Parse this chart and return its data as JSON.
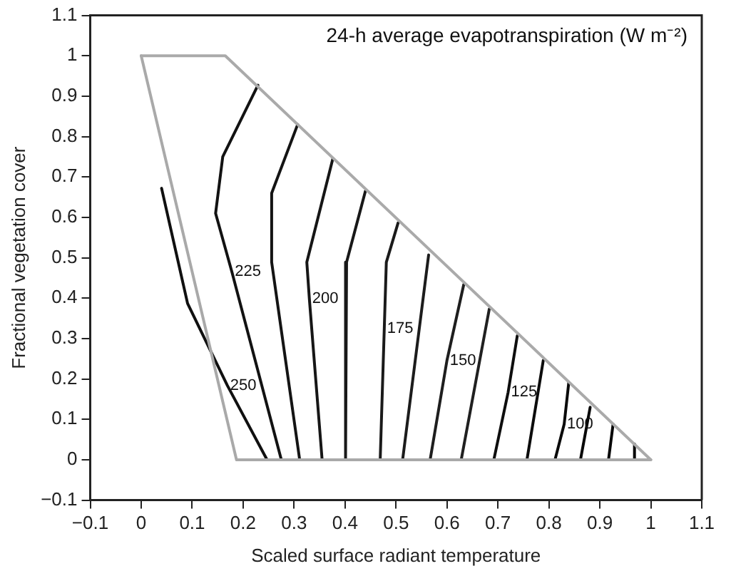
{
  "chart_data": {
    "type": "line",
    "title": "24-h average evapotranspiration (W m⁻²)",
    "xlabel": "Scaled surface radiant temperature",
    "ylabel": "Fractional vegetation cover",
    "xlim": [
      -0.1,
      1.1
    ],
    "ylim": [
      -0.1,
      1.1
    ],
    "xticks": [
      {
        "value": -0.1,
        "label": "−0.1"
      },
      0,
      0.1,
      0.2,
      0.3,
      0.4,
      0.5,
      0.6,
      0.7,
      0.8,
      0.9,
      1,
      1.1
    ],
    "yticks": [
      {
        "value": -0.1,
        "label": "−0.1"
      },
      0,
      0.1,
      0.2,
      0.3,
      0.4,
      0.5,
      0.6,
      0.7,
      0.8,
      0.9,
      1,
      1.1
    ],
    "grid": false,
    "legend": false,
    "marker": "none",
    "line_style": "solid",
    "series": [
      {
        "color": "#aaaaaa",
        "x": [
          0,
          0.165,
          1
        ],
        "values": [
          1,
          1,
          0
        ]
      },
      {
        "color": "#a9a9a9",
        "x": [
          0,
          0.187,
          1
        ],
        "values": [
          1,
          0,
          0
        ]
      },
      {
        "color": "#101010",
        "x": [
          0.04,
          0.091,
          0.169,
          0.247
        ],
        "values": [
          0.672,
          0.387,
          0.184,
          0
        ]
      },
      {
        "color": "#121212",
        "x": [
          0.229,
          0.16,
          0.146,
          0.178,
          0.275
        ],
        "values": [
          0.927,
          0.75,
          0.61,
          0.465,
          0
        ]
      },
      {
        "color": "#141414",
        "x": [
          0.307,
          0.256,
          0.256,
          0.311
        ],
        "values": [
          0.83,
          0.66,
          0.489,
          0
        ]
      },
      {
        "color": "#161616",
        "x": [
          0.376,
          0.325,
          0.33,
          0.355
        ],
        "values": [
          0.745,
          0.489,
          0.398,
          0
        ]
      },
      {
        "color": "#181818",
        "x": [
          0.44,
          0.403,
          0.401
        ],
        "values": [
          0.665,
          0.489,
          0
        ]
      },
      {
        "color": "#1a1a1a",
        "x": [
          0.504,
          0.481,
          0.477,
          0.469
        ],
        "values": [
          0.586,
          0.489,
          0.325,
          0
        ]
      },
      {
        "color": "#1c1c1c",
        "x": [
          0.564,
          0.513
        ],
        "values": [
          0.507,
          0
        ]
      },
      {
        "color": "#1e1e1e",
        "x": [
          0.633,
          0.6,
          0.567
        ],
        "values": [
          0.434,
          0.246,
          0
        ]
      },
      {
        "color": "#202020",
        "x": [
          0.683,
          0.628
        ],
        "values": [
          0.373,
          0
        ]
      },
      {
        "color": "#0e0e0e",
        "x": [
          0.738,
          0.72,
          0.692
        ],
        "values": [
          0.307,
          0.167,
          0
        ]
      },
      {
        "color": "#0c0c0c",
        "x": [
          0.789,
          0.757
        ],
        "values": [
          0.246,
          0
        ]
      },
      {
        "color": "#0a0a0a",
        "x": [
          0.839,
          0.83,
          0.812
        ],
        "values": [
          0.191,
          0.088,
          0
        ]
      },
      {
        "color": "#080808",
        "x": [
          0.881,
          0.862
        ],
        "values": [
          0.13,
          0
        ]
      },
      {
        "color": "#060606",
        "x": [
          0.926,
          0.917
        ],
        "values": [
          0.088,
          0
        ]
      },
      {
        "color": "#040404",
        "x": [
          0.968,
          0.968
        ],
        "values": [
          0.039,
          0
        ]
      }
    ],
    "annotations": [
      {
        "text": "250",
        "x": 0.169,
        "y": 0.184
      },
      {
        "text": "225",
        "x": 0.178,
        "y": 0.465
      },
      {
        "text": "200",
        "x": 0.33,
        "y": 0.398
      },
      {
        "text": "175",
        "x": 0.477,
        "y": 0.325
      },
      {
        "text": "150",
        "x": 0.6,
        "y": 0.246
      },
      {
        "text": "125",
        "x": 0.72,
        "y": 0.167
      },
      {
        "text": "100",
        "x": 0.83,
        "y": 0.088
      }
    ]
  }
}
